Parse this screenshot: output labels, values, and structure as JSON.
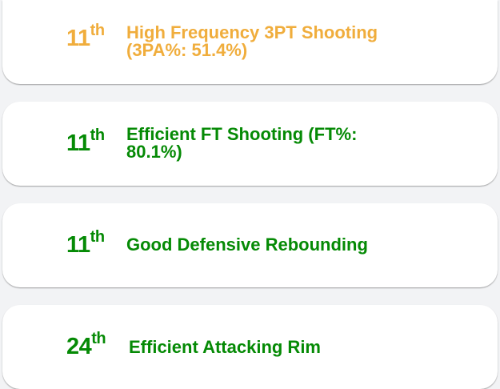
{
  "colors": {
    "warning": "#f0ad3c",
    "good": "#058a05"
  },
  "items": [
    {
      "rank": "11",
      "suffix": "th",
      "label": "High Frequency 3PT Shooting (3PA%: 51.4%)",
      "color": "#f0ad3c"
    },
    {
      "rank": "11",
      "suffix": "th",
      "label": "Efficient FT Shooting (FT%: 80.1%)",
      "color": "#058a05"
    },
    {
      "rank": "11",
      "suffix": "th",
      "label": "Good Defensive Rebounding",
      "color": "#058a05"
    },
    {
      "rank": "24",
      "suffix": "th",
      "label": "Efficient Attacking Rim",
      "color": "#058a05"
    }
  ]
}
